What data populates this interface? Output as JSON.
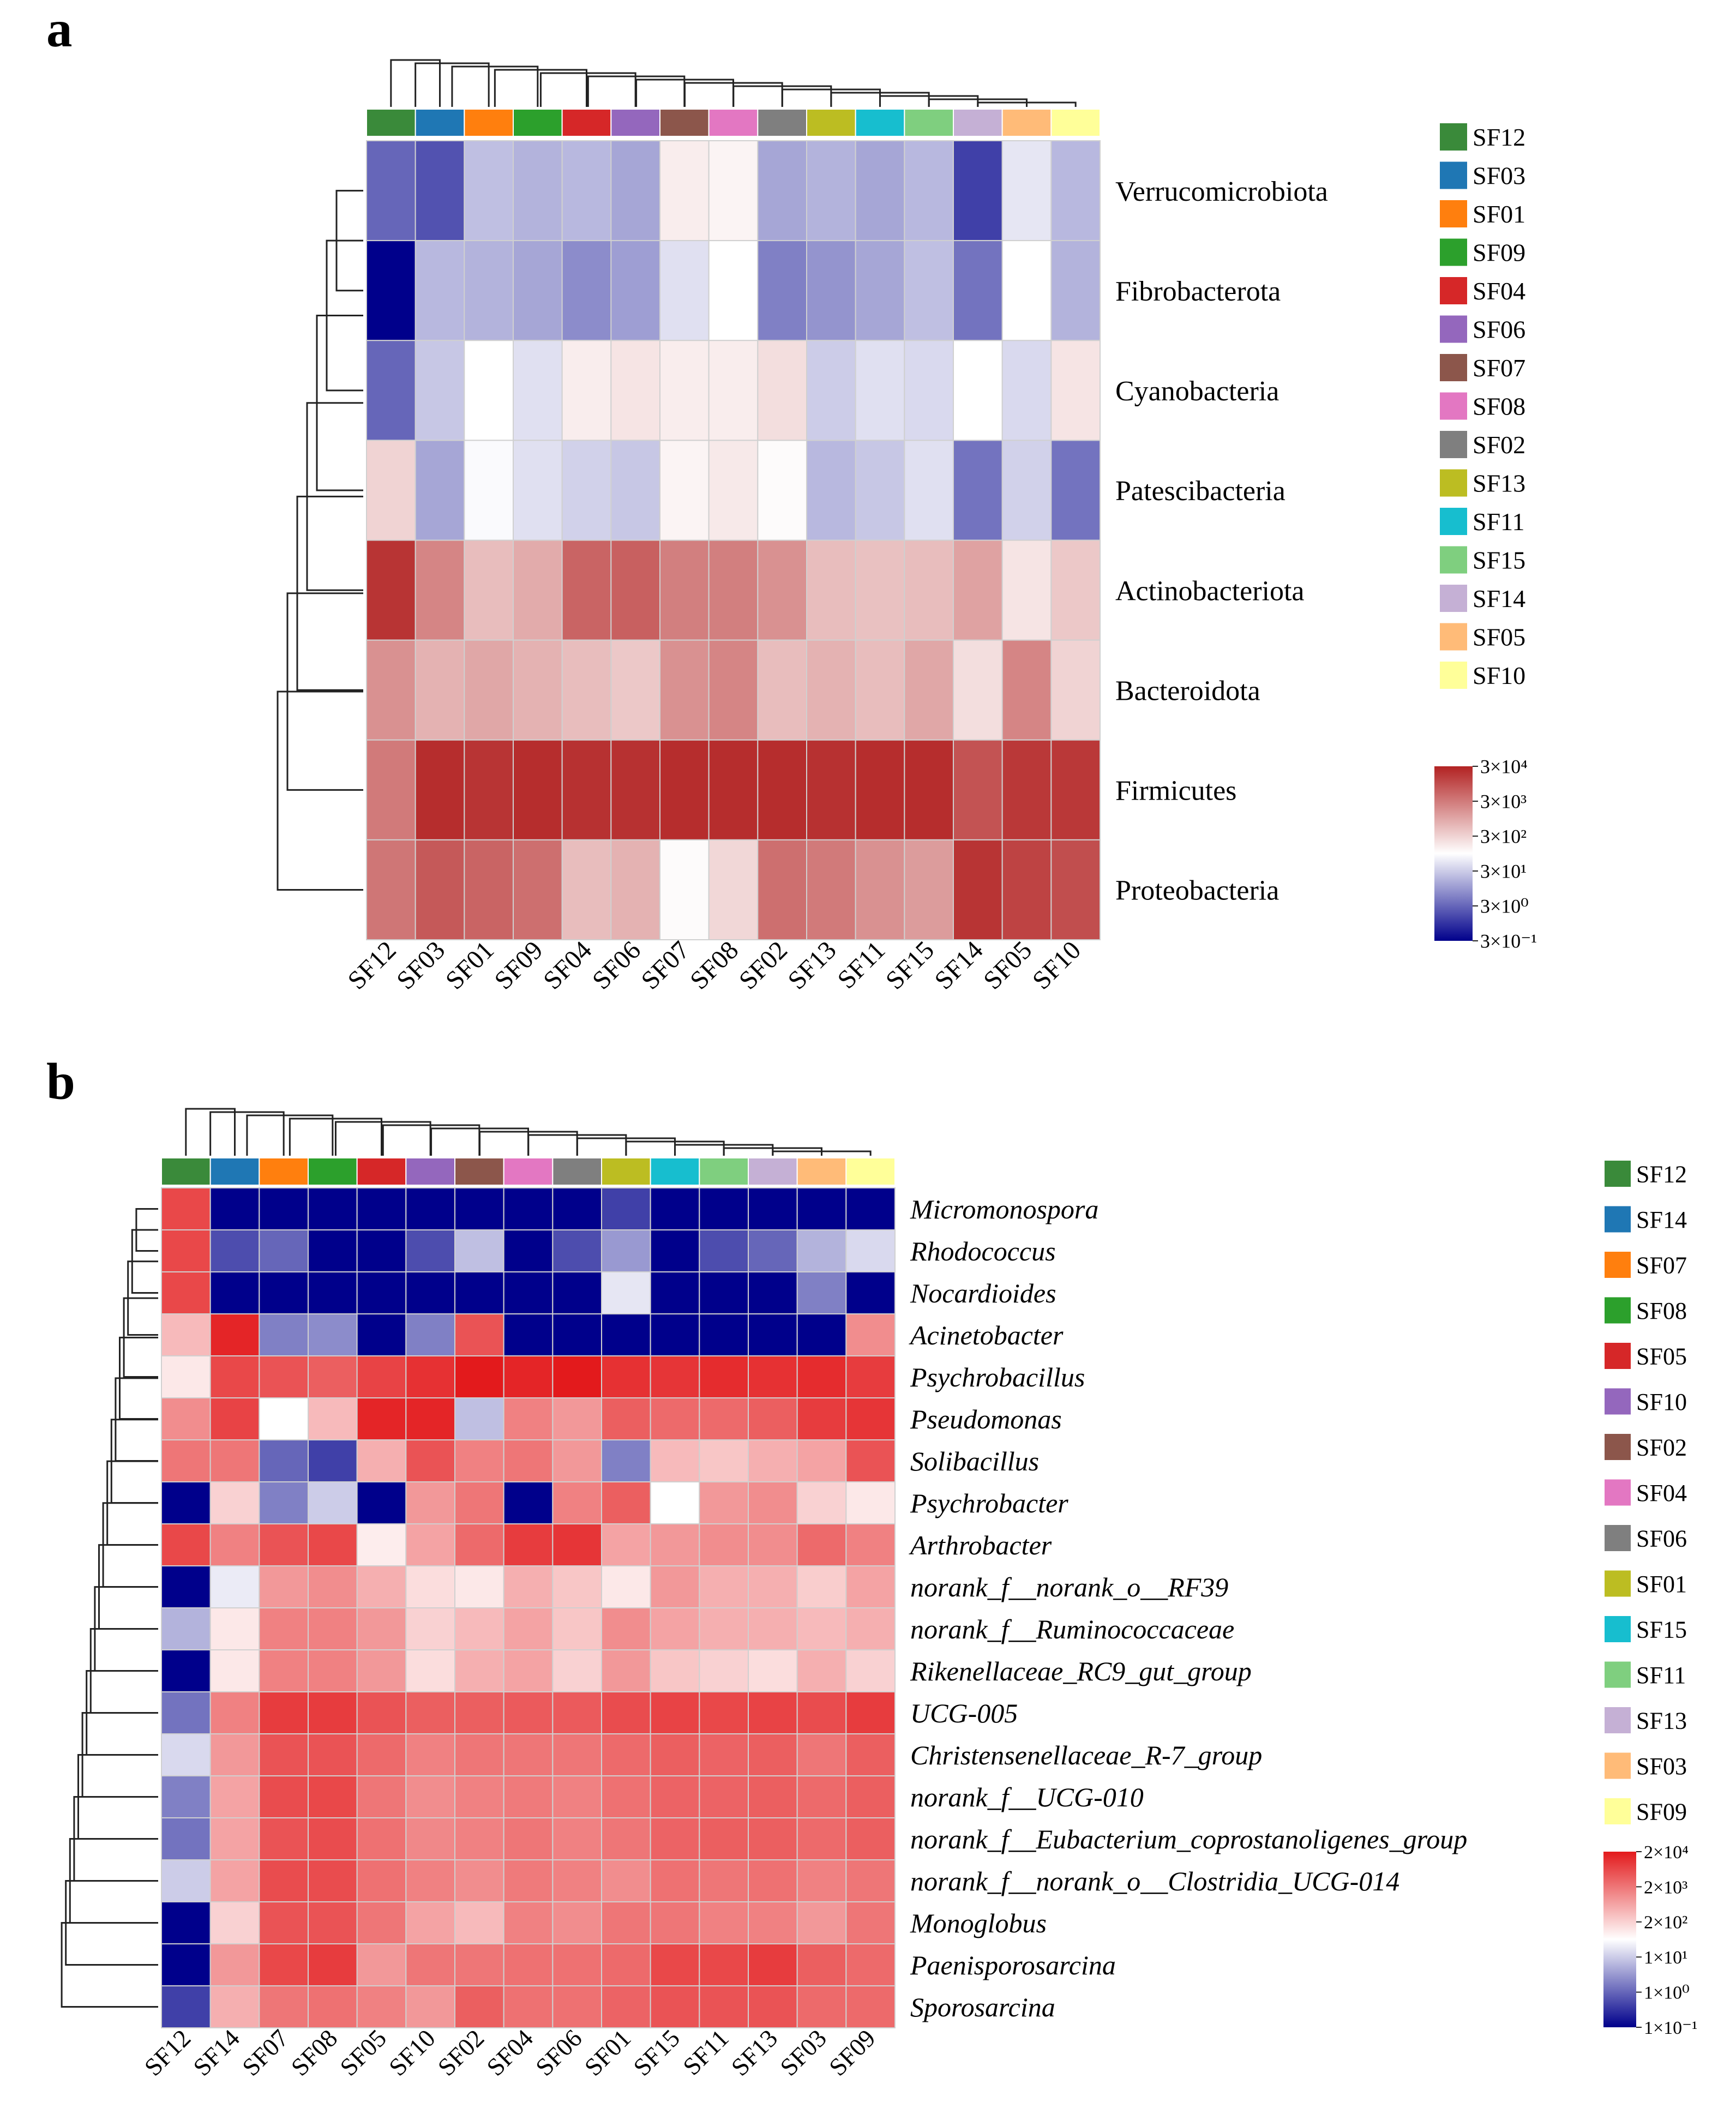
{
  "chart_data": [
    {
      "panel": "a",
      "type": "heatmap",
      "title": "",
      "columns": [
        "SF12",
        "SF03",
        "SF01",
        "SF09",
        "SF04",
        "SF06",
        "SF07",
        "SF08",
        "SF02",
        "SF13",
        "SF11",
        "SF15",
        "SF14",
        "SF05",
        "SF10"
      ],
      "rows": [
        "Verrucomicrobiota",
        "Fibrobacterota",
        "Cyanobacteria",
        "Patescibacteria",
        "Actinobacteriota",
        "Bacteroidota",
        "Firmicutes",
        "Proteobacteria"
      ],
      "values": [
        [
          0.6,
          0.68,
          0.25,
          0.3,
          0.28,
          0.35,
          -0.08,
          -0.05,
          0.35,
          0.3,
          0.35,
          0.28,
          0.75,
          0.1,
          0.28
        ],
        [
          1.0,
          0.28,
          0.3,
          0.35,
          0.45,
          0.38,
          0.12,
          0.0,
          0.5,
          0.42,
          0.35,
          0.25,
          0.55,
          0.0,
          0.3
        ],
        [
          0.6,
          0.22,
          0.0,
          0.12,
          -0.08,
          -0.12,
          -0.08,
          -0.08,
          -0.15,
          0.2,
          0.12,
          0.15,
          0.0,
          0.15,
          -0.12
        ],
        [
          -0.2,
          0.35,
          0.02,
          0.12,
          0.18,
          0.22,
          -0.05,
          -0.1,
          -0.02,
          0.28,
          0.22,
          0.12,
          0.55,
          0.18,
          0.55
        ],
        [
          -0.92,
          -0.55,
          -0.3,
          -0.38,
          -0.7,
          -0.72,
          -0.58,
          -0.58,
          -0.5,
          -0.3,
          -0.28,
          -0.3,
          -0.42,
          -0.12,
          -0.25
        ],
        [
          -0.5,
          -0.35,
          -0.4,
          -0.35,
          -0.3,
          -0.25,
          -0.5,
          -0.55,
          -0.3,
          -0.35,
          -0.3,
          -0.4,
          -0.15,
          -0.55,
          -0.2
        ],
        [
          -0.6,
          -0.95,
          -0.92,
          -0.95,
          -0.93,
          -0.93,
          -0.95,
          -0.95,
          -0.95,
          -0.93,
          -0.95,
          -0.95,
          -0.78,
          -0.9,
          -0.9
        ],
        [
          -0.62,
          -0.75,
          -0.7,
          -0.65,
          -0.3,
          -0.35,
          -0.02,
          -0.18,
          -0.65,
          -0.6,
          -0.5,
          -0.45,
          -0.92,
          -0.85,
          -0.8
        ]
      ],
      "color_scale": {
        "labels": [
          "3×10⁴",
          "3×10³",
          "3×10²",
          "3×10¹",
          "3×10⁰",
          "3×10⁻¹"
        ],
        "high": "#b22222",
        "mid": "#ffffff",
        "low": "#00008b"
      },
      "legend": [
        {
          "label": "SF12",
          "color": "#3a8a3a"
        },
        {
          "label": "SF03",
          "color": "#1f77b4"
        },
        {
          "label": "SF01",
          "color": "#ff7f0e"
        },
        {
          "label": "SF09",
          "color": "#2ca02c"
        },
        {
          "label": "SF04",
          "color": "#d62728"
        },
        {
          "label": "SF06",
          "color": "#9467bd"
        },
        {
          "label": "SF07",
          "color": "#8c564b"
        },
        {
          "label": "SF08",
          "color": "#e377c2"
        },
        {
          "label": "SF02",
          "color": "#7f7f7f"
        },
        {
          "label": "SF13",
          "color": "#bcbd22"
        },
        {
          "label": "SF11",
          "color": "#17becf"
        },
        {
          "label": "SF15",
          "color": "#7fcf7f"
        },
        {
          "label": "SF14",
          "color": "#c5b0d5"
        },
        {
          "label": "SF05",
          "color": "#ffbb78"
        },
        {
          "label": "SF10",
          "color": "#ffff99"
        }
      ]
    },
    {
      "panel": "b",
      "type": "heatmap",
      "title": "",
      "columns": [
        "SF12",
        "SF14",
        "SF07",
        "SF08",
        "SF05",
        "SF10",
        "SF02",
        "SF04",
        "SF06",
        "SF01",
        "SF15",
        "SF11",
        "SF13",
        "SF03",
        "SF09"
      ],
      "rows": [
        "Micromonospora",
        "Rhodococcus",
        "Nocardioides",
        "Acinetobacter",
        "Psychrobacillus",
        "Pseudomonas",
        "Solibacillus",
        "Psychrobacter",
        "Arthrobacter",
        "norank_f__norank_o__RF39",
        "norank_f__Ruminococcaceae",
        "Rikenellaceae_RC9_gut_group",
        "UCG-005",
        "Christensenellaceae_R-7_group",
        "norank_f__UCG-010",
        "norank_f__Eubacterium_coprostanoligenes_group",
        "norank_f__norank_o__Clostridia_UCG-014",
        "Monoglobus",
        "Paenisporosarcina",
        "Sporosarcina"
      ],
      "values": [
        [
          -0.8,
          1.0,
          1.0,
          1.0,
          1.0,
          1.0,
          1.0,
          1.0,
          1.0,
          0.75,
          1.0,
          1.0,
          1.0,
          1.0,
          1.0
        ],
        [
          -0.8,
          0.7,
          0.6,
          1.0,
          1.0,
          0.7,
          0.25,
          1.0,
          0.7,
          0.4,
          1.0,
          0.7,
          0.6,
          0.3,
          0.15
        ],
        [
          -0.8,
          1.0,
          1.0,
          1.0,
          1.0,
          1.0,
          1.0,
          1.0,
          1.0,
          0.1,
          1.0,
          1.0,
          1.0,
          0.5,
          1.0
        ],
        [
          -0.3,
          -0.95,
          0.5,
          0.45,
          1.0,
          0.5,
          -0.75,
          1.0,
          1.0,
          1.0,
          1.0,
          1.0,
          1.0,
          1.0,
          -0.5
        ],
        [
          -0.1,
          -0.8,
          -0.75,
          -0.7,
          -0.82,
          -0.9,
          -1.0,
          -0.95,
          -1.0,
          -0.9,
          -0.88,
          -0.92,
          -0.9,
          -0.92,
          -0.85
        ],
        [
          -0.5,
          -0.82,
          0.0,
          -0.3,
          -0.95,
          -0.95,
          0.25,
          -0.55,
          -0.45,
          -0.7,
          -0.65,
          -0.65,
          -0.7,
          -0.85,
          -0.88
        ],
        [
          -0.6,
          -0.6,
          0.6,
          0.75,
          -0.35,
          -0.75,
          -0.55,
          -0.6,
          -0.45,
          0.5,
          -0.3,
          -0.25,
          -0.35,
          -0.4,
          -0.75
        ],
        [
          1.0,
          -0.2,
          0.5,
          0.2,
          1.0,
          -0.45,
          -0.6,
          1.0,
          -0.55,
          -0.7,
          0.0,
          -0.45,
          -0.5,
          -0.2,
          -0.1
        ],
        [
          -0.8,
          -0.55,
          -0.75,
          -0.8,
          -0.08,
          -0.4,
          -0.65,
          -0.85,
          -0.88,
          -0.4,
          -0.45,
          -0.5,
          -0.5,
          -0.65,
          -0.55
        ],
        [
          1.0,
          0.08,
          -0.45,
          -0.5,
          -0.35,
          -0.15,
          -0.1,
          -0.35,
          -0.25,
          -0.1,
          -0.45,
          -0.35,
          -0.35,
          -0.22,
          -0.4
        ],
        [
          0.3,
          -0.1,
          -0.55,
          -0.55,
          -0.45,
          -0.2,
          -0.3,
          -0.4,
          -0.25,
          -0.5,
          -0.4,
          -0.35,
          -0.35,
          -0.3,
          -0.35
        ],
        [
          1.0,
          -0.1,
          -0.55,
          -0.55,
          -0.45,
          -0.15,
          -0.35,
          -0.4,
          -0.2,
          -0.45,
          -0.25,
          -0.2,
          -0.15,
          -0.35,
          -0.2
        ],
        [
          0.55,
          -0.55,
          -0.85,
          -0.85,
          -0.75,
          -0.7,
          -0.7,
          -0.72,
          -0.72,
          -0.78,
          -0.82,
          -0.8,
          -0.82,
          -0.78,
          -0.85
        ],
        [
          0.15,
          -0.45,
          -0.75,
          -0.75,
          -0.65,
          -0.55,
          -0.6,
          -0.6,
          -0.6,
          -0.65,
          -0.7,
          -0.68,
          -0.7,
          -0.6,
          -0.7
        ],
        [
          0.5,
          -0.4,
          -0.78,
          -0.8,
          -0.6,
          -0.5,
          -0.55,
          -0.58,
          -0.55,
          -0.62,
          -0.68,
          -0.68,
          -0.7,
          -0.65,
          -0.7
        ],
        [
          0.55,
          -0.4,
          -0.75,
          -0.78,
          -0.62,
          -0.52,
          -0.55,
          -0.6,
          -0.55,
          -0.6,
          -0.68,
          -0.7,
          -0.7,
          -0.65,
          -0.7
        ],
        [
          0.2,
          -0.4,
          -0.78,
          -0.78,
          -0.62,
          -0.55,
          -0.5,
          -0.58,
          -0.55,
          -0.5,
          -0.62,
          -0.6,
          -0.62,
          -0.55,
          -0.6
        ],
        [
          1.0,
          -0.2,
          -0.75,
          -0.75,
          -0.6,
          -0.4,
          -0.3,
          -0.55,
          -0.5,
          -0.6,
          -0.6,
          -0.55,
          -0.55,
          -0.45,
          -0.6
        ],
        [
          1.0,
          -0.45,
          -0.8,
          -0.85,
          -0.45,
          -0.6,
          -0.6,
          -0.62,
          -0.62,
          -0.65,
          -0.8,
          -0.8,
          -0.85,
          -0.7,
          -0.65
        ],
        [
          0.75,
          -0.35,
          -0.6,
          -0.62,
          -0.55,
          -0.45,
          -0.7,
          -0.62,
          -0.62,
          -0.68,
          -0.75,
          -0.75,
          -0.75,
          -0.65,
          -0.65
        ]
      ],
      "color_scale": {
        "labels": [
          "2×10⁴",
          "2×10³",
          "2×10²",
          "1×10¹",
          "1×10⁰",
          "1×10⁻¹"
        ],
        "high": "#e31a1c",
        "mid": "#ffffff",
        "low": "#00008b"
      },
      "legend": [
        {
          "label": "SF12",
          "color": "#3a8a3a"
        },
        {
          "label": "SF14",
          "color": "#1f77b4"
        },
        {
          "label": "SF07",
          "color": "#ff7f0e"
        },
        {
          "label": "SF08",
          "color": "#2ca02c"
        },
        {
          "label": "SF05",
          "color": "#d62728"
        },
        {
          "label": "SF10",
          "color": "#9467bd"
        },
        {
          "label": "SF02",
          "color": "#8c564b"
        },
        {
          "label": "SF04",
          "color": "#e377c2"
        },
        {
          "label": "SF06",
          "color": "#7f7f7f"
        },
        {
          "label": "SF01",
          "color": "#bcbd22"
        },
        {
          "label": "SF15",
          "color": "#17becf"
        },
        {
          "label": "SF11",
          "color": "#7fcf7f"
        },
        {
          "label": "SF13",
          "color": "#c5b0d5"
        },
        {
          "label": "SF03",
          "color": "#ffbb78"
        },
        {
          "label": "SF09",
          "color": "#ffff99"
        }
      ]
    }
  ]
}
